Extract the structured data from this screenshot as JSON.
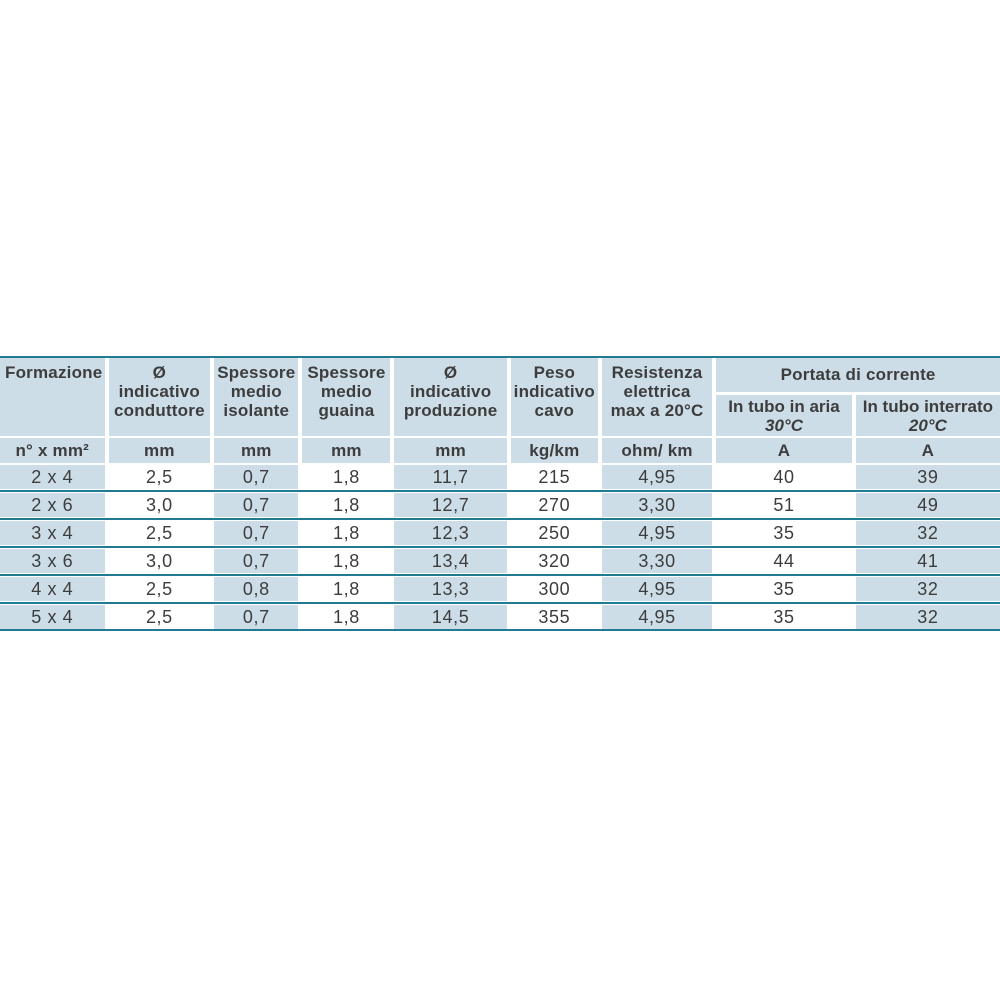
{
  "colors": {
    "cell_blue": "#cddde7",
    "separator_teal": "#207a92",
    "text": "#3d3d3d",
    "background": "#ffffff"
  },
  "chart_data": {
    "type": "table",
    "group_header": "Portata di corrente",
    "columns": [
      {
        "header_lines": [
          "Formazione"
        ],
        "unit": "n° x mm²"
      },
      {
        "header_lines": [
          "Ø",
          "indicativo",
          "conduttore"
        ],
        "unit": "mm"
      },
      {
        "header_lines": [
          "Spessore",
          "medio",
          "isolante"
        ],
        "unit": "mm"
      },
      {
        "header_lines": [
          "Spessore",
          "medio",
          "guaina"
        ],
        "unit": "mm"
      },
      {
        "header_lines": [
          "Ø",
          "indicativo",
          "produzione"
        ],
        "unit": "mm"
      },
      {
        "header_lines": [
          "Peso",
          "indicativo",
          "cavo"
        ],
        "unit": "kg/km"
      },
      {
        "header_lines": [
          "Resistenza",
          "elettrica",
          "max a 20°C"
        ],
        "unit": "ohm/ km"
      },
      {
        "header_lines": [
          "In tubo in aria",
          "30°C"
        ],
        "unit": "A",
        "group": "Portata di corrente"
      },
      {
        "header_lines": [
          "In tubo interrato",
          "20°C"
        ],
        "unit": "A",
        "group": "Portata di corrente"
      }
    ],
    "rows": [
      [
        "2 x 4",
        "2,5",
        "0,7",
        "1,8",
        "11,7",
        "215",
        "4,95",
        "40",
        "39"
      ],
      [
        "2 x 6",
        "3,0",
        "0,7",
        "1,8",
        "12,7",
        "270",
        "3,30",
        "51",
        "49"
      ],
      [
        "3 x 4",
        "2,5",
        "0,7",
        "1,8",
        "12,3",
        "250",
        "4,95",
        "35",
        "32"
      ],
      [
        "3 x 6",
        "3,0",
        "0,7",
        "1,8",
        "13,4",
        "320",
        "3,30",
        "44",
        "41"
      ],
      [
        "4 x 4",
        "2,5",
        "0,8",
        "1,8",
        "13,3",
        "300",
        "4,95",
        "35",
        "32"
      ],
      [
        "5 x 4",
        "2,5",
        "0,7",
        "1,8",
        "14,5",
        "355",
        "4,95",
        "35",
        "32"
      ]
    ]
  }
}
